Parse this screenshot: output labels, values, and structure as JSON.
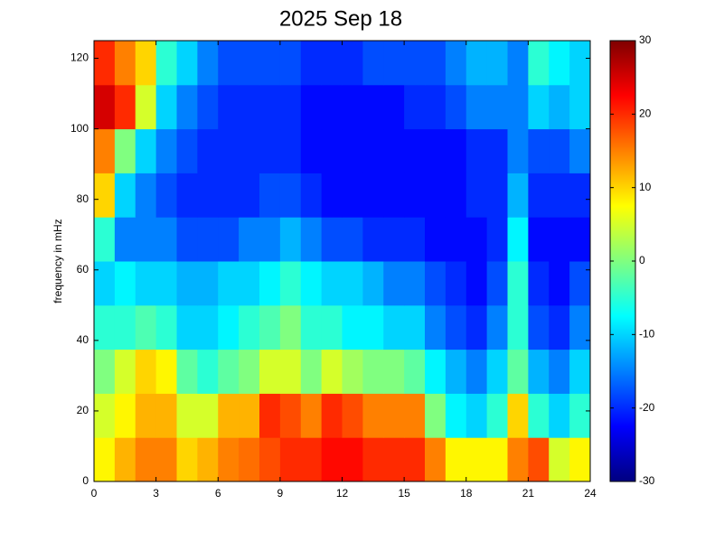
{
  "chart_data": {
    "type": "heatmap",
    "title": "2025 Sep 18",
    "y_label": "frequency in mHz",
    "x_bins": [
      0,
      1,
      2,
      3,
      4,
      5,
      6,
      7,
      8,
      9,
      10,
      11,
      12,
      13,
      14,
      15,
      16,
      17,
      18,
      19,
      20,
      21,
      22,
      23,
      24
    ],
    "y_bins": [
      0,
      12.5,
      25,
      37.5,
      50,
      62.5,
      75,
      87.5,
      100,
      112.5,
      125
    ],
    "xlim": [
      0,
      24
    ],
    "xticks": [
      0,
      3,
      6,
      9,
      12,
      15,
      18,
      21,
      24
    ],
    "ylim": [
      0,
      125
    ],
    "yticks": [
      0,
      20,
      40,
      60,
      80,
      100,
      120
    ],
    "clim": [
      -30,
      30
    ],
    "cticks": [
      -30,
      -20,
      -10,
      0,
      10,
      20,
      30
    ],
    "colormap": "jet",
    "values": [
      [
        8,
        12,
        15,
        15,
        10,
        12,
        15,
        16,
        18,
        20,
        20,
        22,
        22,
        20,
        20,
        20,
        15,
        8,
        8,
        8,
        15,
        18,
        5,
        8
      ],
      [
        5,
        8,
        12,
        12,
        5,
        5,
        12,
        12,
        20,
        18,
        15,
        20,
        18,
        15,
        15,
        15,
        0,
        -8,
        -10,
        -5,
        10,
        -5,
        -10,
        -5
      ],
      [
        0,
        5,
        10,
        8,
        -2,
        -5,
        -2,
        0,
        5,
        5,
        0,
        5,
        2,
        0,
        0,
        -2,
        -8,
        -12,
        -15,
        -10,
        -2,
        -12,
        -15,
        -10
      ],
      [
        -5,
        -5,
        -3,
        -5,
        -10,
        -10,
        -8,
        -5,
        -3,
        0,
        -5,
        -5,
        -8,
        -8,
        -10,
        -10,
        -15,
        -18,
        -20,
        -15,
        -5,
        -18,
        -20,
        -15
      ],
      [
        -10,
        -8,
        -10,
        -10,
        -12,
        -12,
        -10,
        -10,
        -8,
        -5,
        -8,
        -10,
        -10,
        -12,
        -15,
        -15,
        -18,
        -20,
        -22,
        -18,
        -5,
        -20,
        -22,
        -18
      ],
      [
        -5,
        -15,
        -15,
        -15,
        -18,
        -18,
        -18,
        -15,
        -15,
        -12,
        -15,
        -18,
        -18,
        -20,
        -20,
        -20,
        -22,
        -22,
        -22,
        -20,
        -8,
        -22,
        -22,
        -22
      ],
      [
        10,
        -10,
        -15,
        -18,
        -20,
        -20,
        -20,
        -20,
        -18,
        -18,
        -20,
        -22,
        -22,
        -22,
        -22,
        -22,
        -22,
        -22,
        -20,
        -20,
        -12,
        -20,
        -20,
        -20
      ],
      [
        15,
        0,
        -10,
        -15,
        -18,
        -20,
        -20,
        -20,
        -20,
        -20,
        -22,
        -22,
        -22,
        -22,
        -22,
        -22,
        -22,
        -22,
        -20,
        -20,
        -15,
        -18,
        -18,
        -15
      ],
      [
        25,
        20,
        5,
        -10,
        -15,
        -18,
        -20,
        -20,
        -20,
        -20,
        -22,
        -22,
        -22,
        -22,
        -22,
        -20,
        -20,
        -18,
        -15,
        -15,
        -15,
        -10,
        -12,
        -10
      ],
      [
        20,
        15,
        10,
        -5,
        -10,
        -15,
        -18,
        -18,
        -18,
        -18,
        -20,
        -20,
        -20,
        -18,
        -18,
        -18,
        -18,
        -15,
        -12,
        -12,
        -15,
        -5,
        -8,
        -10
      ]
    ]
  }
}
